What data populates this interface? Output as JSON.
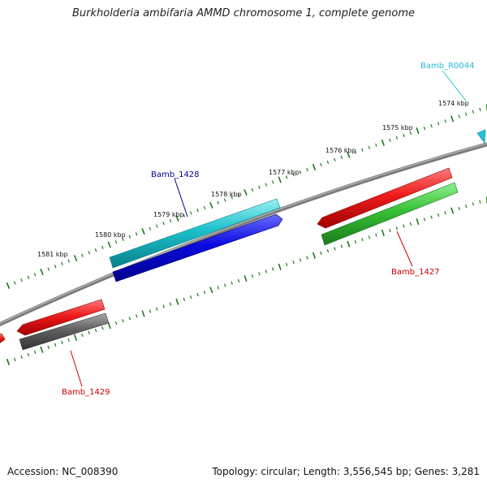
{
  "title": "Burkholderia ambifaria AMMD chromosome 1, complete genome",
  "footer": {
    "accession": "Accession: NC_008390",
    "topology": "Topology: circular; Length: 3,556,545 bp; Genes: 3,281"
  },
  "ruler": {
    "tick_labels": [
      "1574 kbp",
      "1575 kbp",
      "1576 kbp",
      "1577 kbp",
      "1578 kbp",
      "1579 kbp",
      "1580 kbp",
      "1581 kbp"
    ],
    "tick_color": "#1a7a1a"
  },
  "genes": [
    {
      "label": "Bamb_R0044",
      "color": "#2ab7d6",
      "strand": "forward"
    },
    {
      "label": "Bamb_1428",
      "color": "#00008b",
      "strand": "forward"
    },
    {
      "label": "Bamb_1427",
      "color": "#cc0000",
      "strand": "reverse"
    },
    {
      "label": "Bamb_1429",
      "color": "#cc0000",
      "strand": "reverse"
    }
  ],
  "colors": {
    "backbone": "#808080",
    "feature_red": "#e8201e",
    "feature_green": "#3cc43c",
    "feature_cyan": "#22c4cc",
    "feature_blue": "#1a1ae0",
    "feature_gray": "#666666"
  }
}
